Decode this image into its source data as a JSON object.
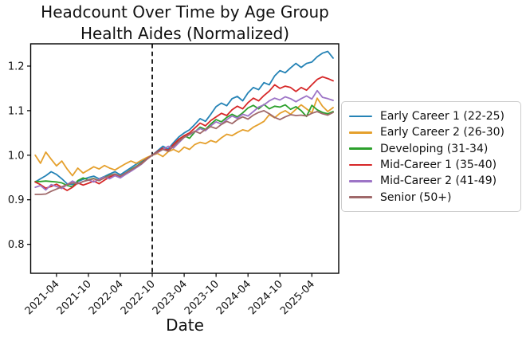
{
  "chart_data": {
    "type": "line",
    "title": "Headcount Over Time by Age Group",
    "subtitle": "Health Aides (Normalized)",
    "xlabel": "Date",
    "ylabel": "",
    "grid": false,
    "legend_position": "right",
    "ylim": [
      0.735,
      1.25
    ],
    "y_ticks": [
      "0.8",
      "0.9",
      "1.0",
      "1.1",
      "1.2"
    ],
    "x_tick_labels": [
      "2021-04",
      "2021-10",
      "2022-04",
      "2022-10",
      "2023-04",
      "2023-10",
      "2024-04",
      "2024-10",
      "2025-04"
    ],
    "vline_date": "2022-10",
    "vline_style": "dashed-black",
    "dates": [
      "2020-12",
      "2021-01",
      "2021-02",
      "2021-03",
      "2021-04",
      "2021-05",
      "2021-06",
      "2021-07",
      "2021-08",
      "2021-09",
      "2021-10",
      "2021-11",
      "2021-12",
      "2022-01",
      "2022-02",
      "2022-03",
      "2022-04",
      "2022-05",
      "2022-06",
      "2022-07",
      "2022-08",
      "2022-09",
      "2022-10",
      "2022-11",
      "2022-12",
      "2023-01",
      "2023-02",
      "2023-03",
      "2023-04",
      "2023-05",
      "2023-06",
      "2023-07",
      "2023-08",
      "2023-09",
      "2023-10",
      "2023-11",
      "2023-12",
      "2024-01",
      "2024-02",
      "2024-03",
      "2024-04",
      "2024-05",
      "2024-06",
      "2024-07",
      "2024-08",
      "2024-09",
      "2024-10",
      "2024-11",
      "2024-12",
      "2025-01",
      "2025-02",
      "2025-03",
      "2025-04",
      "2025-05",
      "2025-06",
      "2025-07",
      "2025-08"
    ],
    "series": [
      {
        "name": "Early Career 1 (22-25)",
        "color": "#2583b6",
        "values": [
          0.94,
          0.947,
          0.954,
          0.963,
          0.957,
          0.947,
          0.936,
          0.934,
          0.941,
          0.946,
          0.95,
          0.953,
          0.947,
          0.952,
          0.958,
          0.963,
          0.956,
          0.964,
          0.972,
          0.98,
          0.987,
          0.994,
          1.0,
          1.01,
          1.02,
          1.014,
          1.028,
          1.041,
          1.05,
          1.057,
          1.069,
          1.082,
          1.076,
          1.092,
          1.109,
          1.117,
          1.111,
          1.127,
          1.132,
          1.122,
          1.14,
          1.152,
          1.147,
          1.163,
          1.158,
          1.178,
          1.19,
          1.185,
          1.196,
          1.206,
          1.197,
          1.206,
          1.209,
          1.221,
          1.229,
          1.233,
          1.218
        ]
      },
      {
        "name": "Early Career 2 (26-30)",
        "color": "#e5a02d",
        "values": [
          1.0,
          0.982,
          1.007,
          0.991,
          0.976,
          0.987,
          0.969,
          0.954,
          0.971,
          0.96,
          0.967,
          0.974,
          0.969,
          0.977,
          0.971,
          0.967,
          0.974,
          0.981,
          0.987,
          0.982,
          0.989,
          0.995,
          1.0,
          1.004,
          0.997,
          1.008,
          1.013,
          1.007,
          1.018,
          1.013,
          1.024,
          1.029,
          1.026,
          1.033,
          1.029,
          1.039,
          1.047,
          1.044,
          1.051,
          1.057,
          1.054,
          1.063,
          1.069,
          1.076,
          1.091,
          1.084,
          1.094,
          1.1,
          1.092,
          1.103,
          1.113,
          1.104,
          1.095,
          1.128,
          1.11,
          1.098,
          1.107
        ]
      },
      {
        "name": "Developing (31-34)",
        "color": "#2ca02c",
        "values": [
          0.941,
          0.941,
          0.942,
          0.941,
          0.94,
          0.938,
          0.932,
          0.929,
          0.943,
          0.949,
          0.945,
          0.948,
          0.943,
          0.95,
          0.955,
          0.958,
          0.953,
          0.96,
          0.968,
          0.975,
          0.983,
          0.992,
          1.0,
          1.007,
          1.014,
          1.01,
          1.022,
          1.035,
          1.044,
          1.038,
          1.052,
          1.063,
          1.058,
          1.07,
          1.08,
          1.075,
          1.085,
          1.092,
          1.086,
          1.095,
          1.106,
          1.112,
          1.104,
          1.114,
          1.104,
          1.11,
          1.108,
          1.113,
          1.103,
          1.109,
          1.1,
          1.087,
          1.112,
          1.102,
          1.096,
          1.093,
          1.098
        ]
      },
      {
        "name": "Mid-Career 1 (35-40)",
        "color": "#d62728",
        "values": [
          0.94,
          0.934,
          0.926,
          0.93,
          0.935,
          0.928,
          0.921,
          0.928,
          0.938,
          0.933,
          0.937,
          0.942,
          0.936,
          0.944,
          0.951,
          0.956,
          0.95,
          0.958,
          0.966,
          0.974,
          0.982,
          0.992,
          1.0,
          1.008,
          1.016,
          1.011,
          1.024,
          1.036,
          1.044,
          1.05,
          1.061,
          1.072,
          1.066,
          1.078,
          1.086,
          1.094,
          1.089,
          1.102,
          1.11,
          1.104,
          1.118,
          1.128,
          1.122,
          1.134,
          1.144,
          1.158,
          1.15,
          1.155,
          1.152,
          1.143,
          1.152,
          1.146,
          1.158,
          1.17,
          1.176,
          1.172,
          1.167
        ]
      },
      {
        "name": "Mid-Career 2 (41-49)",
        "color": "#9d74c6",
        "values": [
          0.928,
          0.932,
          0.922,
          0.934,
          0.93,
          0.925,
          0.934,
          0.942,
          0.936,
          0.941,
          0.945,
          0.94,
          0.946,
          0.951,
          0.947,
          0.954,
          0.949,
          0.957,
          0.964,
          0.972,
          0.98,
          0.991,
          1.0,
          1.006,
          1.013,
          1.02,
          1.016,
          1.028,
          1.04,
          1.046,
          1.053,
          1.06,
          1.055,
          1.066,
          1.075,
          1.07,
          1.08,
          1.088,
          1.083,
          1.092,
          1.088,
          1.098,
          1.108,
          1.113,
          1.122,
          1.128,
          1.124,
          1.131,
          1.127,
          1.12,
          1.127,
          1.133,
          1.126,
          1.145,
          1.13,
          1.127,
          1.123
        ]
      },
      {
        "name": "Senior (50+)",
        "color": "#a0696a",
        "values": [
          0.912,
          0.912,
          0.913,
          0.919,
          0.924,
          0.929,
          0.934,
          0.938,
          0.936,
          0.941,
          0.944,
          0.947,
          0.943,
          0.949,
          0.954,
          0.958,
          0.953,
          0.96,
          0.967,
          0.974,
          0.981,
          0.991,
          1.0,
          1.007,
          1.013,
          1.009,
          1.02,
          1.031,
          1.04,
          1.047,
          1.054,
          1.049,
          1.058,
          1.064,
          1.06,
          1.069,
          1.076,
          1.071,
          1.08,
          1.086,
          1.081,
          1.09,
          1.096,
          1.1,
          1.093,
          1.085,
          1.08,
          1.086,
          1.091,
          1.089,
          1.09,
          1.088,
          1.094,
          1.098,
          1.093,
          1.09,
          1.096
        ]
      }
    ]
  }
}
